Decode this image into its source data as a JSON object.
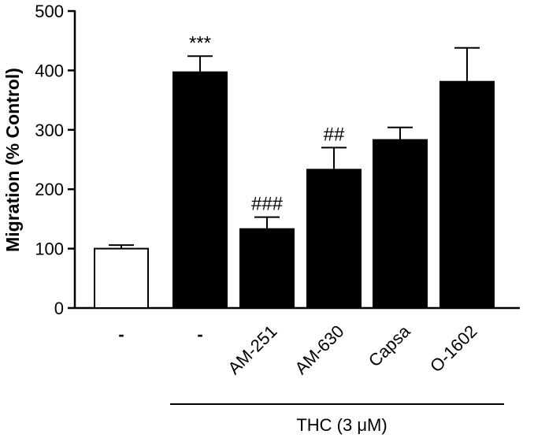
{
  "chart_data": {
    "type": "bar",
    "title": "",
    "ylabel": "Migration (% Control)",
    "xlabel": "",
    "ylim": [
      0,
      500
    ],
    "yticks": [
      0,
      100,
      200,
      300,
      400,
      500
    ],
    "categories": [
      "-",
      "-",
      "AM-251",
      "AM-630",
      "Capsa",
      "O-1602"
    ],
    "values": [
      100,
      397,
      133,
      233,
      283,
      381
    ],
    "errors": [
      6,
      27,
      20,
      37,
      21,
      57
    ],
    "bar_colors": [
      "#ffffff",
      "#000000",
      "#000000",
      "#000000",
      "#000000",
      "#000000"
    ],
    "annotations": [
      "",
      "***",
      "###",
      "##",
      "",
      ""
    ],
    "group_label": "THC (3 μM)",
    "group_span": [
      1,
      5
    ],
    "grid": false
  }
}
